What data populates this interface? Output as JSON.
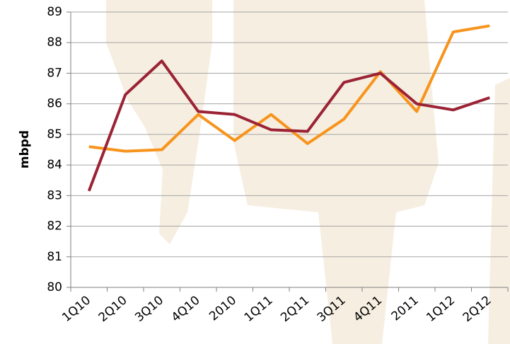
{
  "chart_data": {
    "type": "line",
    "y_label": "mbpd",
    "categories": [
      "1Q10",
      "2Q10",
      "3Q10",
      "4Q10",
      "2010",
      "1Q11",
      "2Q11",
      "3Q11",
      "4Q11",
      "2011",
      "1Q12",
      "2Q12"
    ],
    "series": [
      {
        "color": "#f7941d",
        "values": [
          84.6,
          84.45,
          84.5,
          85.65,
          84.8,
          85.65,
          84.7,
          85.5,
          87.05,
          85.75,
          88.35,
          88.55
        ]
      },
      {
        "color": "#9b2335",
        "values": [
          83.15,
          86.3,
          87.4,
          85.75,
          85.65,
          85.15,
          85.1,
          86.7,
          87.0,
          86.0,
          85.8,
          86.2
        ]
      }
    ],
    "ylim": [
      80,
      89
    ],
    "yticks": [
      80,
      81,
      82,
      83,
      84,
      85,
      86,
      87,
      88,
      89
    ],
    "grid": true
  }
}
